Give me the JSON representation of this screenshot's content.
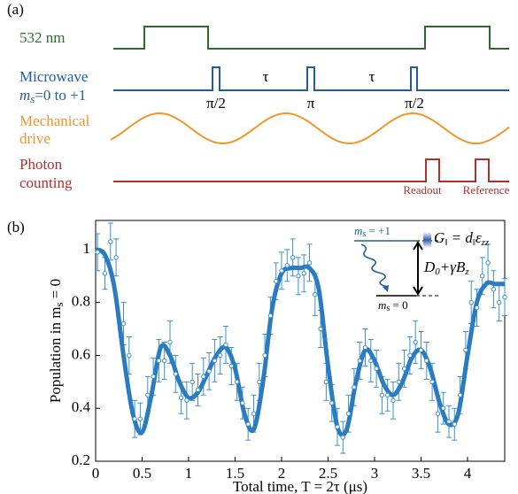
{
  "timing_diagram": {
    "panel_label": "(a)",
    "laser": "532 nm",
    "microwave": [
      "Microwave",
      [
        "m",
        "s",
        "=0 to +1"
      ]
    ],
    "pulse_labels": [
      "π/2",
      "τ",
      "π",
      "τ",
      "π/2"
    ],
    "mechanical": [
      "Mechanical",
      "drive"
    ],
    "photon": [
      "Photon",
      "counting"
    ],
    "readout": "Readout",
    "reference": "Reference"
  },
  "chart_data": {
    "type": "scatter",
    "panel_label": "(b)",
    "xlabel": "Total time, T = 2τ (μs)",
    "ylabel": [
      "Population in m",
      "s",
      " = 0"
    ],
    "xlim": [
      0,
      4.4
    ],
    "ylim": [
      0.2,
      1.11
    ],
    "xticks": [
      0,
      0.5,
      1,
      1.5,
      2,
      2.5,
      3,
      3.5,
      4
    ],
    "yticks": [
      0.2,
      0.4,
      0.6,
      0.8,
      1
    ],
    "points": {
      "color": "#3b8fd0",
      "x": [
        0.02,
        0.1,
        0.16,
        0.22,
        0.3,
        0.36,
        0.42,
        0.48,
        0.56,
        0.62,
        0.68,
        0.74,
        0.8,
        0.86,
        0.92,
        0.98,
        1.04,
        1.1,
        1.16,
        1.22,
        1.28,
        1.34,
        1.4,
        1.46,
        1.52,
        1.58,
        1.64,
        1.7,
        1.76,
        1.82,
        1.88,
        1.94,
        2.0,
        2.06,
        2.12,
        2.18,
        2.24,
        2.3,
        2.36,
        2.42,
        2.48,
        2.54,
        2.6,
        2.66,
        2.72,
        2.78,
        2.84,
        2.9,
        2.96,
        3.02,
        3.08,
        3.14,
        3.2,
        3.26,
        3.32,
        3.38,
        3.44,
        3.5,
        3.56,
        3.62,
        3.68,
        3.74,
        3.8,
        3.86,
        3.92,
        3.98,
        4.04,
        4.1,
        4.16,
        4.22,
        4.28,
        4.34,
        4.4
      ],
      "values": [
        0.99,
        0.91,
        1.03,
        0.97,
        0.72,
        0.6,
        0.36,
        0.36,
        0.45,
        0.52,
        0.58,
        0.58,
        0.65,
        0.53,
        0.44,
        0.43,
        0.5,
        0.47,
        0.52,
        0.54,
        0.58,
        0.6,
        0.64,
        0.56,
        0.5,
        0.42,
        0.34,
        0.38,
        0.5,
        0.6,
        0.75,
        0.88,
        0.92,
        0.94,
        0.97,
        0.9,
        0.91,
        0.95,
        0.83,
        0.7,
        0.5,
        0.42,
        0.33,
        0.29,
        0.38,
        0.48,
        0.58,
        0.63,
        0.58,
        0.55,
        0.45,
        0.45,
        0.43,
        0.5,
        0.55,
        0.6,
        0.65,
        0.62,
        0.58,
        0.5,
        0.38,
        0.4,
        0.35,
        0.34,
        0.45,
        0.62,
        0.8,
        0.78,
        0.9,
        0.95,
        0.85,
        0.8,
        0.82
      ],
      "errors": [
        0.07,
        0.06,
        0.07,
        0.07,
        0.08,
        0.07,
        0.07,
        0.06,
        0.07,
        0.07,
        0.08,
        0.07,
        0.08,
        0.07,
        0.06,
        0.07,
        0.07,
        0.06,
        0.07,
        0.07,
        0.08,
        0.07,
        0.07,
        0.07,
        0.07,
        0.06,
        0.06,
        0.07,
        0.07,
        0.08,
        0.07,
        0.07,
        0.07,
        0.06,
        0.07,
        0.07,
        0.07,
        0.07,
        0.08,
        0.07,
        0.07,
        0.07,
        0.07,
        0.06,
        0.07,
        0.07,
        0.07,
        0.07,
        0.08,
        0.07,
        0.07,
        0.06,
        0.07,
        0.07,
        0.07,
        0.07,
        0.08,
        0.07,
        0.07,
        0.07,
        0.07,
        0.06,
        0.06,
        0.06,
        0.07,
        0.07,
        0.08,
        0.07,
        0.07,
        0.07,
        0.07,
        0.07,
        0.07
      ]
    },
    "fit": {
      "color": "#2b7bc0",
      "x": [
        0,
        0.1,
        0.2,
        0.3,
        0.4,
        0.5,
        0.6,
        0.7,
        0.8,
        0.9,
        1,
        1.1,
        1.2,
        1.3,
        1.4,
        1.5,
        1.6,
        1.7,
        1.8,
        1.9,
        2,
        2.1,
        2.2,
        2.3,
        2.4,
        2.5,
        2.6,
        2.7,
        2.8,
        2.9,
        3,
        3.1,
        3.2,
        3.3,
        3.4,
        3.5,
        3.6,
        3.7,
        3.8,
        3.9,
        4,
        4.1,
        4.2,
        4.3,
        4.4
      ],
      "values": [
        1,
        0.98,
        0.86,
        0.6,
        0.38,
        0.31,
        0.45,
        0.63,
        0.6,
        0.5,
        0.44,
        0.46,
        0.53,
        0.6,
        0.63,
        0.55,
        0.38,
        0.32,
        0.5,
        0.78,
        0.91,
        0.93,
        0.93,
        0.93,
        0.85,
        0.56,
        0.33,
        0.32,
        0.5,
        0.62,
        0.58,
        0.49,
        0.45,
        0.5,
        0.59,
        0.62,
        0.55,
        0.42,
        0.34,
        0.38,
        0.6,
        0.8,
        0.87,
        0.87,
        0.87
      ]
    },
    "inset": {
      "upper": [
        "m",
        "s",
        " = +1"
      ],
      "lower": [
        "m",
        "s",
        " = 0"
      ],
      "coupling": [
        "G",
        "‖",
        " = d",
        "‖",
        "ε",
        "zz"
      ],
      "splitting": [
        "D",
        "0",
        "+γB",
        "z"
      ]
    }
  }
}
